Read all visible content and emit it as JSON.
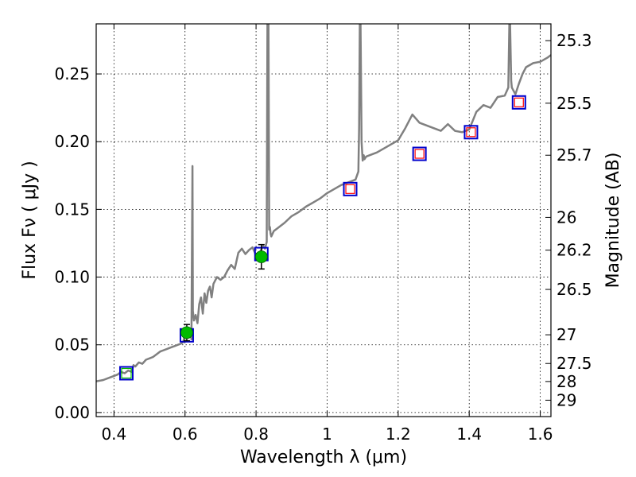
{
  "chart_data": {
    "type": "scatter",
    "title": "",
    "xlabel": "Wavelength  λ (μm)",
    "ylabel": "Flux  Fν  ( μJy )",
    "y2label": "Magnitude (AB)",
    "xlim": [
      0.35,
      1.63
    ],
    "ylim": [
      -0.003,
      0.287
    ],
    "grid": true,
    "x_ticks": [
      0.4,
      0.6,
      0.8,
      1.0,
      1.2,
      1.4,
      1.6
    ],
    "x_tick_labels": [
      "0.4",
      "0.6",
      "0.8",
      "1",
      "1.2",
      "1.4",
      "1.6"
    ],
    "y_ticks": [
      0.0,
      0.05,
      0.1,
      0.15,
      0.2,
      0.25
    ],
    "y_tick_labels": [
      "0.00",
      "0.05",
      "0.10",
      "0.15",
      "0.20",
      "0.25"
    ],
    "y2_ticks": [
      {
        "label": "25.3",
        "flux": 0.2746
      },
      {
        "label": "25.5",
        "flux": 0.2284
      },
      {
        "label": "25.7",
        "flux": 0.19
      },
      {
        "label": "26",
        "flux": 0.1441
      },
      {
        "label": "26.2",
        "flux": 0.1199
      },
      {
        "label": "26.5",
        "flux": 0.0909
      },
      {
        "label": "27",
        "flux": 0.0574
      },
      {
        "label": "27.5",
        "flux": 0.0362
      },
      {
        "label": "28",
        "flux": 0.0229
      },
      {
        "label": "29",
        "flux": 0.0091
      }
    ],
    "series": [
      {
        "name": "model spectrum",
        "kind": "line",
        "color": "#808080",
        "x": [
          0.35,
          0.37,
          0.39,
          0.4,
          0.41,
          0.42,
          0.43,
          0.44,
          0.45,
          0.455,
          0.46,
          0.47,
          0.48,
          0.49,
          0.5,
          0.51,
          0.52,
          0.53,
          0.54,
          0.55,
          0.56,
          0.57,
          0.58,
          0.59,
          0.595,
          0.6,
          0.605,
          0.61,
          0.615,
          0.618,
          0.621,
          0.622,
          0.625,
          0.63,
          0.635,
          0.64,
          0.645,
          0.65,
          0.655,
          0.66,
          0.665,
          0.67,
          0.675,
          0.68,
          0.69,
          0.7,
          0.71,
          0.72,
          0.73,
          0.74,
          0.75,
          0.76,
          0.77,
          0.78,
          0.79,
          0.8,
          0.81,
          0.82,
          0.825,
          0.83,
          0.832,
          0.835,
          0.837,
          0.839,
          0.841,
          0.843,
          0.85,
          0.86,
          0.87,
          0.88,
          0.9,
          0.92,
          0.94,
          0.96,
          0.98,
          1.0,
          1.02,
          1.04,
          1.06,
          1.08,
          1.088,
          1.09,
          1.092,
          1.094,
          1.097,
          1.1,
          1.103,
          1.105,
          1.11,
          1.12,
          1.14,
          1.16,
          1.18,
          1.2,
          1.22,
          1.24,
          1.26,
          1.28,
          1.3,
          1.32,
          1.34,
          1.36,
          1.38,
          1.4,
          1.42,
          1.44,
          1.46,
          1.48,
          1.5,
          1.51,
          1.513,
          1.515,
          1.518,
          1.52,
          1.53,
          1.54,
          1.55,
          1.56,
          1.58,
          1.6,
          1.62,
          1.63
        ],
        "y": [
          0.023,
          0.024,
          0.026,
          0.027,
          0.028,
          0.03,
          0.029,
          0.031,
          0.03,
          0.035,
          0.034,
          0.037,
          0.036,
          0.039,
          0.04,
          0.041,
          0.043,
          0.045,
          0.046,
          0.047,
          0.048,
          0.049,
          0.05,
          0.051,
          0.052,
          0.058,
          0.057,
          0.058,
          0.062,
          0.054,
          0.182,
          0.075,
          0.068,
          0.072,
          0.066,
          0.08,
          0.085,
          0.073,
          0.088,
          0.081,
          0.09,
          0.093,
          0.085,
          0.095,
          0.1,
          0.098,
          0.1,
          0.105,
          0.109,
          0.106,
          0.118,
          0.121,
          0.117,
          0.12,
          0.122,
          0.116,
          0.118,
          0.123,
          0.121,
          0.126,
          0.287,
          0.287,
          0.135,
          0.137,
          0.132,
          0.13,
          0.134,
          0.136,
          0.138,
          0.14,
          0.145,
          0.148,
          0.152,
          0.155,
          0.158,
          0.162,
          0.165,
          0.168,
          0.17,
          0.172,
          0.178,
          0.21,
          0.287,
          0.287,
          0.2,
          0.186,
          0.19,
          0.187,
          0.189,
          0.19,
          0.192,
          0.195,
          0.198,
          0.201,
          0.21,
          0.22,
          0.214,
          0.212,
          0.21,
          0.208,
          0.213,
          0.208,
          0.207,
          0.209,
          0.222,
          0.227,
          0.225,
          0.233,
          0.234,
          0.24,
          0.287,
          0.287,
          0.245,
          0.24,
          0.235,
          0.243,
          0.25,
          0.255,
          0.258,
          0.259,
          0.262,
          0.264
        ]
      },
      {
        "name": "model photometry (blue squares)",
        "kind": "marker",
        "color": "#0000cc",
        "x": [
          0.435,
          0.605,
          0.815,
          1.065,
          1.26,
          1.405,
          1.54
        ],
        "y": [
          0.029,
          0.057,
          0.117,
          0.165,
          0.191,
          0.207,
          0.229
        ]
      },
      {
        "name": "photometry without detection (red squares)",
        "kind": "marker",
        "color": "#ff0000",
        "x": [
          1.065,
          1.26,
          1.405,
          1.54
        ],
        "y": [
          0.165,
          0.191,
          0.207,
          0.229
        ]
      },
      {
        "name": "observed photometry (green points)",
        "kind": "marker",
        "color": "#00bb00",
        "x": [
          0.435,
          0.605,
          0.815
        ],
        "y": [
          0.029,
          0.059,
          0.115
        ],
        "y_err": [
          0.0,
          0.006,
          0.009
        ]
      }
    ]
  }
}
